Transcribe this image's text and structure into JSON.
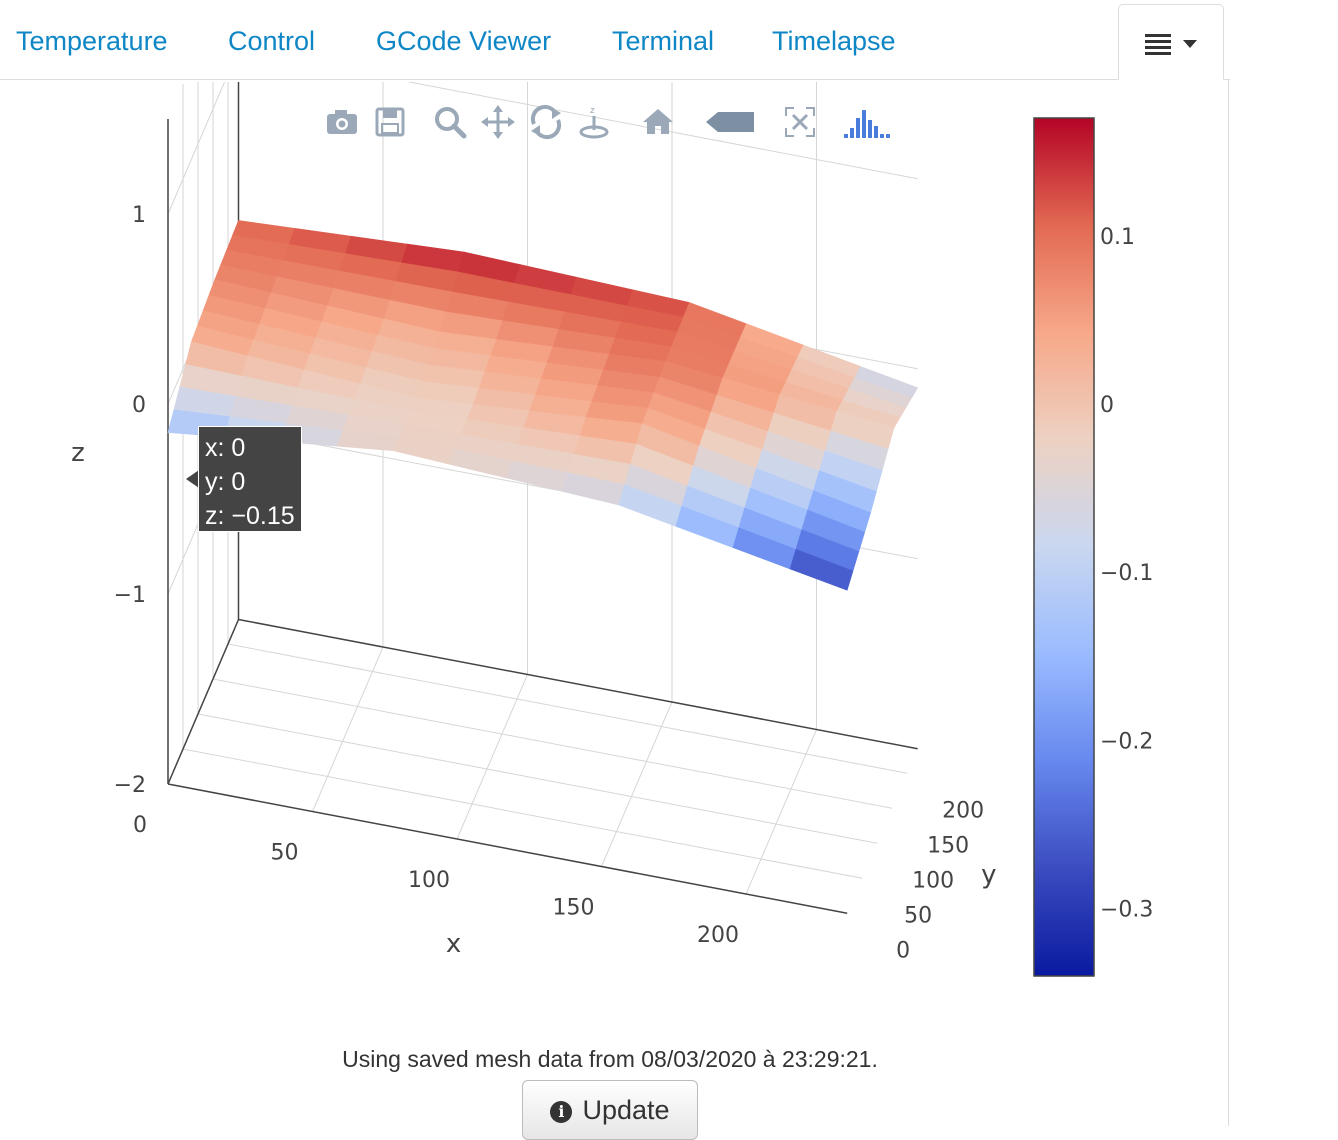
{
  "tabs": [
    {
      "id": "temperature",
      "label": "Temperature"
    },
    {
      "id": "control",
      "label": "Control"
    },
    {
      "id": "gcode-viewer",
      "label": "GCode Viewer"
    },
    {
      "id": "terminal",
      "label": "Terminal"
    },
    {
      "id": "timelapse",
      "label": "Timelapse"
    }
  ],
  "tab_menu": {
    "icon": "hamburger-dropdown-icon"
  },
  "modebar": [
    {
      "name": "camera-icon",
      "title": "Download plot as a png"
    },
    {
      "name": "save-icon",
      "title": "Save"
    },
    {
      "name": "zoom-icon",
      "title": "Zoom"
    },
    {
      "name": "pan-icon",
      "title": "Pan"
    },
    {
      "name": "orbit-rotation-icon",
      "title": "Orbital rotation"
    },
    {
      "name": "turntable-rotation-icon",
      "title": "Turntable rotation"
    },
    {
      "name": "home-icon",
      "title": "Reset camera"
    },
    {
      "name": "hover-closest-icon",
      "title": "Show closest data on hover"
    },
    {
      "name": "autoscale-icon",
      "title": "Toggle spike lines"
    },
    {
      "name": "plotly-logo-icon",
      "title": "Produced with Plotly"
    }
  ],
  "tooltip": {
    "x_line": "x: 0",
    "y_line": "y: 0",
    "z_line": "z: −0.15"
  },
  "status": {
    "text": "Using saved mesh data from 08/03/2020 à 23:29:21."
  },
  "update_button": {
    "label": "Update",
    "icon": "info-circle-icon"
  },
  "chart_data": {
    "type": "surface",
    "title": "",
    "xlabel": "x",
    "ylabel": "y",
    "zlabel": "z",
    "x_ticks": [
      "0",
      "50",
      "100",
      "150",
      "200"
    ],
    "y_ticks": [
      "0",
      "50",
      "100",
      "150",
      "200"
    ],
    "z_ticks": [
      "−2",
      "−1",
      "0",
      "1"
    ],
    "xlim": [
      0,
      235
    ],
    "ylim": [
      0,
      235
    ],
    "zlim": [
      -2,
      1.5
    ],
    "colorscale": [
      "#0a1aa0",
      "#3b4cc0",
      "#6788ee",
      "#9abbff",
      "#c9d7f0",
      "#edd1c2",
      "#f7a889",
      "#e26952",
      "#b40426"
    ],
    "colorbar": {
      "ticks": [
        "0.1",
        "0",
        "−0.1",
        "−0.2",
        "−0.3"
      ],
      "range": [
        -0.34,
        0.17
      ]
    },
    "grid": true,
    "x": [
      0,
      78,
      156,
      235
    ],
    "y": [
      0,
      78,
      156,
      235
    ],
    "z": [
      [
        -0.15,
        -0.02,
        -0.08,
        -0.3
      ],
      [
        0.04,
        -0.03,
        0.06,
        -0.18
      ],
      [
        0.08,
        0.03,
        0.1,
        -0.02
      ],
      [
        0.1,
        0.16,
        0.12,
        -0.1
      ]
    ]
  }
}
